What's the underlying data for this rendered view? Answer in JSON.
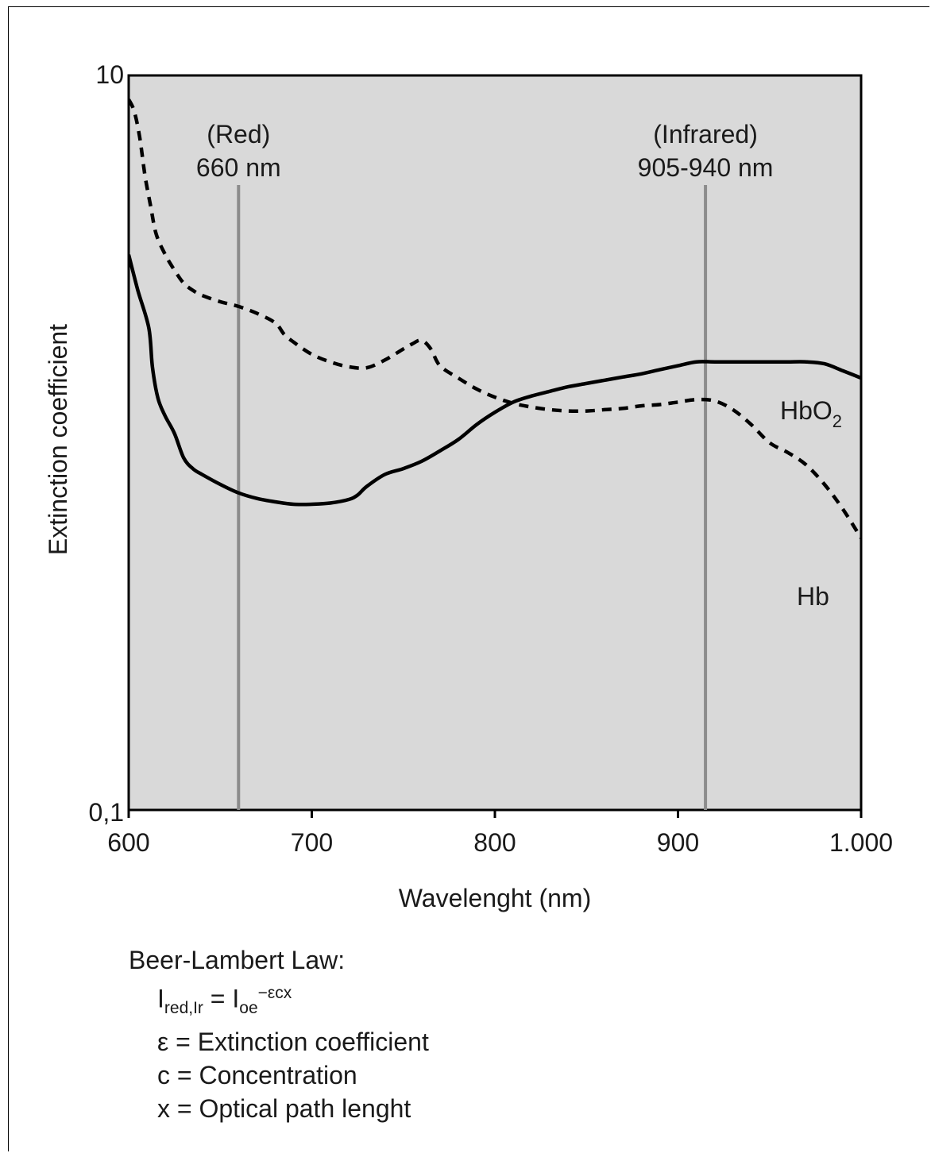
{
  "chart_data": {
    "type": "line",
    "x_scale": "linear",
    "y_scale": "log",
    "xlim": [
      600,
      1000
    ],
    "ylim": [
      0.1,
      10
    ],
    "xlabel": "Wavelenght (nm)",
    "ylabel": "Extinction coefficient",
    "x_ticks": [
      600,
      700,
      800,
      900,
      1000
    ],
    "x_tick_labels": [
      "600",
      "700",
      "800",
      "900",
      "1.000"
    ],
    "y_ticks": [
      0.1,
      10
    ],
    "y_tick_labels": [
      "0,1",
      "10"
    ],
    "grid": false,
    "background": "#d9d9d9",
    "annotations": [
      {
        "line1": "(Red)",
        "line2": "660 nm",
        "x": 660
      },
      {
        "line1": "(Infrared)",
        "line2": "905-940 nm",
        "x": 915
      }
    ],
    "series": [
      {
        "name": "HbO",
        "name_subscript": "2",
        "style": "solid",
        "color": "#000000",
        "x": [
          600,
          605,
          611,
          613,
          616,
          620,
          625,
          630,
          635,
          640,
          650,
          660,
          670,
          680,
          690,
          700,
          710,
          720,
          725,
          730,
          740,
          750,
          760,
          770,
          780,
          790,
          800,
          810,
          820,
          830,
          840,
          850,
          860,
          870,
          880,
          890,
          900,
          910,
          920,
          930,
          940,
          950,
          960,
          970,
          980,
          990,
          1000
        ],
        "y": [
          3.25,
          2.6,
          2.05,
          1.6,
          1.32,
          1.18,
          1.06,
          0.91,
          0.85,
          0.82,
          0.77,
          0.73,
          0.705,
          0.69,
          0.68,
          0.68,
          0.685,
          0.7,
          0.72,
          0.76,
          0.82,
          0.85,
          0.89,
          0.95,
          1.02,
          1.12,
          1.21,
          1.29,
          1.34,
          1.38,
          1.42,
          1.45,
          1.48,
          1.51,
          1.54,
          1.58,
          1.62,
          1.66,
          1.66,
          1.66,
          1.66,
          1.66,
          1.66,
          1.66,
          1.64,
          1.57,
          1.5
        ]
      },
      {
        "name": "Hb",
        "style": "dashed",
        "color": "#000000",
        "x": [
          600,
          603,
          606,
          609,
          612,
          615,
          620,
          625,
          630,
          635,
          640,
          650,
          660,
          670,
          680,
          685,
          690,
          700,
          710,
          720,
          730,
          740,
          750,
          755,
          760,
          765,
          770,
          780,
          790,
          800,
          810,
          820,
          830,
          840,
          850,
          860,
          870,
          880,
          890,
          900,
          910,
          920,
          930,
          940,
          950,
          960,
          970,
          980,
          990,
          1000
        ],
        "y": [
          8.6,
          8.0,
          6.8,
          5.3,
          4.4,
          3.7,
          3.25,
          2.95,
          2.72,
          2.6,
          2.52,
          2.42,
          2.35,
          2.25,
          2.12,
          1.97,
          1.88,
          1.74,
          1.66,
          1.61,
          1.6,
          1.68,
          1.8,
          1.86,
          1.9,
          1.8,
          1.62,
          1.5,
          1.4,
          1.33,
          1.28,
          1.25,
          1.23,
          1.22,
          1.22,
          1.23,
          1.24,
          1.26,
          1.27,
          1.29,
          1.31,
          1.3,
          1.23,
          1.12,
          1.0,
          0.94,
          0.87,
          0.77,
          0.66,
          0.55
        ]
      }
    ]
  },
  "beer_lambert": {
    "title": "Beer-Lambert Law:",
    "formula": {
      "I": "I",
      "sub_left": "red,Ir",
      "eq": " = I",
      "sub_right": "oe",
      "sup": "−εcx"
    },
    "defs": [
      "ε = Extinction coefficient",
      "c = Concentration",
      "x = Optical path lenght"
    ]
  }
}
